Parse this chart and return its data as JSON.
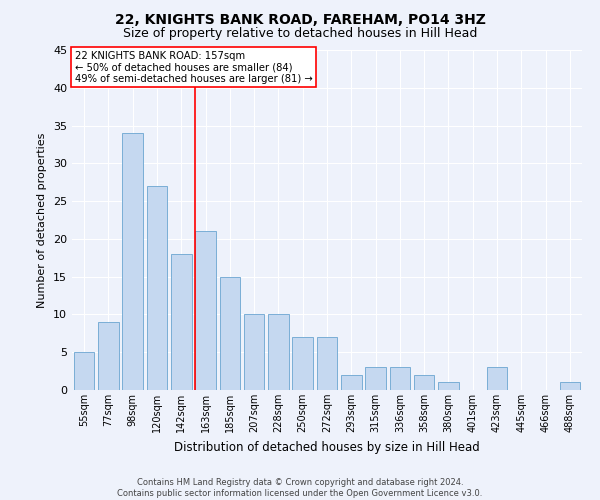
{
  "title1": "22, KNIGHTS BANK ROAD, FAREHAM, PO14 3HZ",
  "title2": "Size of property relative to detached houses in Hill Head",
  "xlabel": "Distribution of detached houses by size in Hill Head",
  "ylabel": "Number of detached properties",
  "categories": [
    "55sqm",
    "77sqm",
    "98sqm",
    "120sqm",
    "142sqm",
    "163sqm",
    "185sqm",
    "207sqm",
    "228sqm",
    "250sqm",
    "272sqm",
    "293sqm",
    "315sqm",
    "336sqm",
    "358sqm",
    "380sqm",
    "401sqm",
    "423sqm",
    "445sqm",
    "466sqm",
    "488sqm"
  ],
  "values": [
    5,
    9,
    34,
    27,
    18,
    21,
    15,
    10,
    10,
    7,
    7,
    2,
    3,
    3,
    2,
    1,
    0,
    3,
    0,
    0,
    1
  ],
  "bar_color": "#c5d8f0",
  "bar_edge_color": "#7aaed6",
  "annotation_line1": "22 KNIGHTS BANK ROAD: 157sqm",
  "annotation_line2": "← 50% of detached houses are smaller (84)",
  "annotation_line3": "49% of semi-detached houses are larger (81) →",
  "ylim": [
    0,
    45
  ],
  "yticks": [
    0,
    5,
    10,
    15,
    20,
    25,
    30,
    35,
    40,
    45
  ],
  "footer1": "Contains HM Land Registry data © Crown copyright and database right 2024.",
  "footer2": "Contains public sector information licensed under the Open Government Licence v3.0.",
  "bg_color": "#eef2fb",
  "grid_color": "#ffffff",
  "title1_fontsize": 10,
  "title2_fontsize": 9
}
